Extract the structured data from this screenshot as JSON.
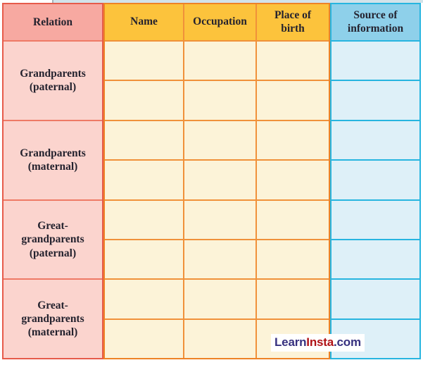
{
  "table": {
    "headers": [
      "Relation",
      "Name",
      "Occupation",
      "Place of birth",
      "Source of information"
    ],
    "relation_groups": [
      {
        "label": "Grandparents (paternal)",
        "sub_rows": 2
      },
      {
        "label": "Grandparents (maternal)",
        "sub_rows": 2
      },
      {
        "label": "Great-grandparents (paternal)",
        "sub_rows": 2
      },
      {
        "label": "Great-grandparents (maternal)",
        "sub_rows": 2
      }
    ],
    "body_cells_are_empty": true
  },
  "watermark": {
    "learn": "Learn",
    "insta": "Insta",
    "suffix": ".com"
  },
  "colors": {
    "relation_header_bg": "#f7a9a1",
    "relation_body_bg": "#fbd4ce",
    "relation_border": "#e65b4a",
    "mid_header_bg": "#fcc33c",
    "mid_body_bg": "#fcf3d8",
    "mid_border": "#f0913a",
    "source_header_bg": "#8ed0ea",
    "source_body_bg": "#def0f8",
    "source_border": "#27b5e0",
    "text": "#24222e",
    "watermark_blue": "#36307f",
    "watermark_red": "#b01216"
  }
}
